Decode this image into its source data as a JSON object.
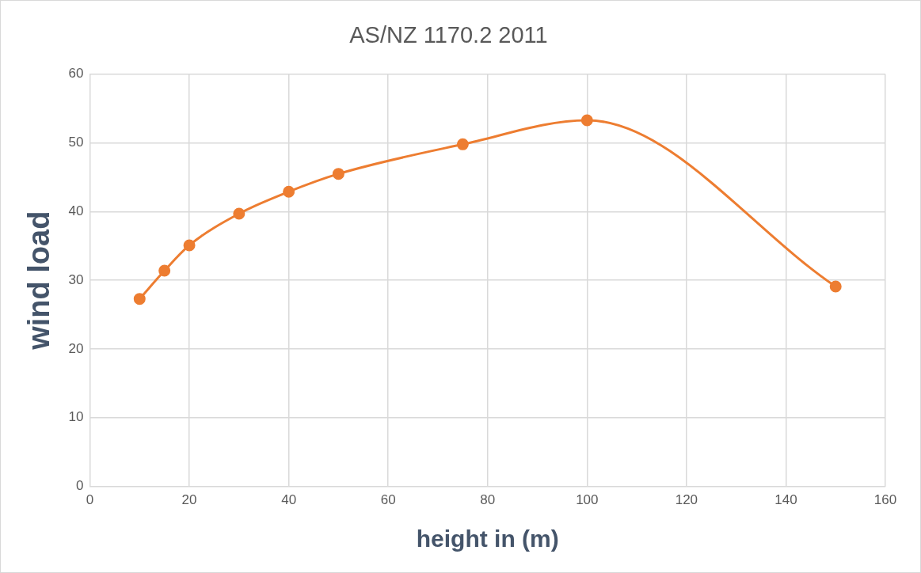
{
  "chart_data": {
    "type": "line",
    "title": "AS/NZ 1170.2 2011",
    "xlabel": "height in (m)",
    "ylabel": "wind load",
    "x": [
      10,
      15,
      20,
      30,
      40,
      50,
      75,
      100,
      150
    ],
    "series": [
      {
        "color": "#ed7d31",
        "values": [
          27.3,
          31.4,
          35.1,
          39.7,
          42.9,
          45.5,
          49.8,
          53.3,
          29.1
        ]
      }
    ],
    "xlim": [
      0,
      160
    ],
    "xticks": [
      0,
      20,
      40,
      60,
      80,
      100,
      120,
      140,
      160
    ],
    "ylim": [
      0,
      60
    ],
    "yticks": [
      0,
      10,
      20,
      30,
      40,
      50,
      60
    ],
    "grid": true,
    "marker": "circle",
    "line_style": "solid"
  }
}
